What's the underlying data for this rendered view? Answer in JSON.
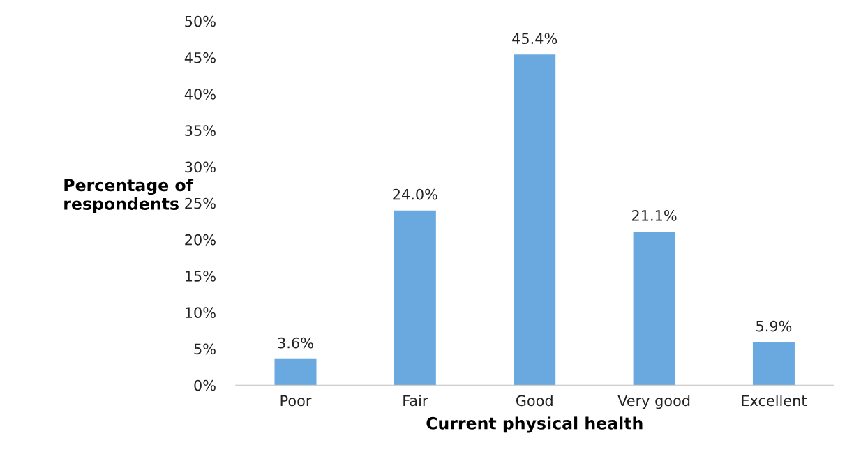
{
  "chart_data": {
    "type": "bar",
    "xlabel": "Current physical health",
    "ylabel": "Percentage of\nrespondents",
    "categories": [
      "Poor",
      "Fair",
      "Good",
      "Very good",
      "Excellent"
    ],
    "values": [
      3.6,
      24.0,
      45.4,
      21.1,
      5.9
    ],
    "value_labels": [
      "3.6%",
      "24.0%",
      "45.4%",
      "21.1%",
      "5.9%"
    ],
    "color": "#6aa9e0",
    "ylim": [
      0,
      50
    ],
    "yticks": [
      {
        "value": 0,
        "label": "0%"
      },
      {
        "value": 5,
        "label": "5%"
      },
      {
        "value": 10,
        "label": "10%"
      },
      {
        "value": 15,
        "label": "15%"
      },
      {
        "value": 20,
        "label": "20%"
      },
      {
        "value": 25,
        "label": "25%"
      },
      {
        "value": 30,
        "label": "30%"
      },
      {
        "value": 35,
        "label": "35%"
      },
      {
        "value": 40,
        "label": "40%"
      },
      {
        "value": 45,
        "label": "45%"
      },
      {
        "value": 50,
        "label": "50%"
      }
    ],
    "grid": false,
    "legend": false
  }
}
